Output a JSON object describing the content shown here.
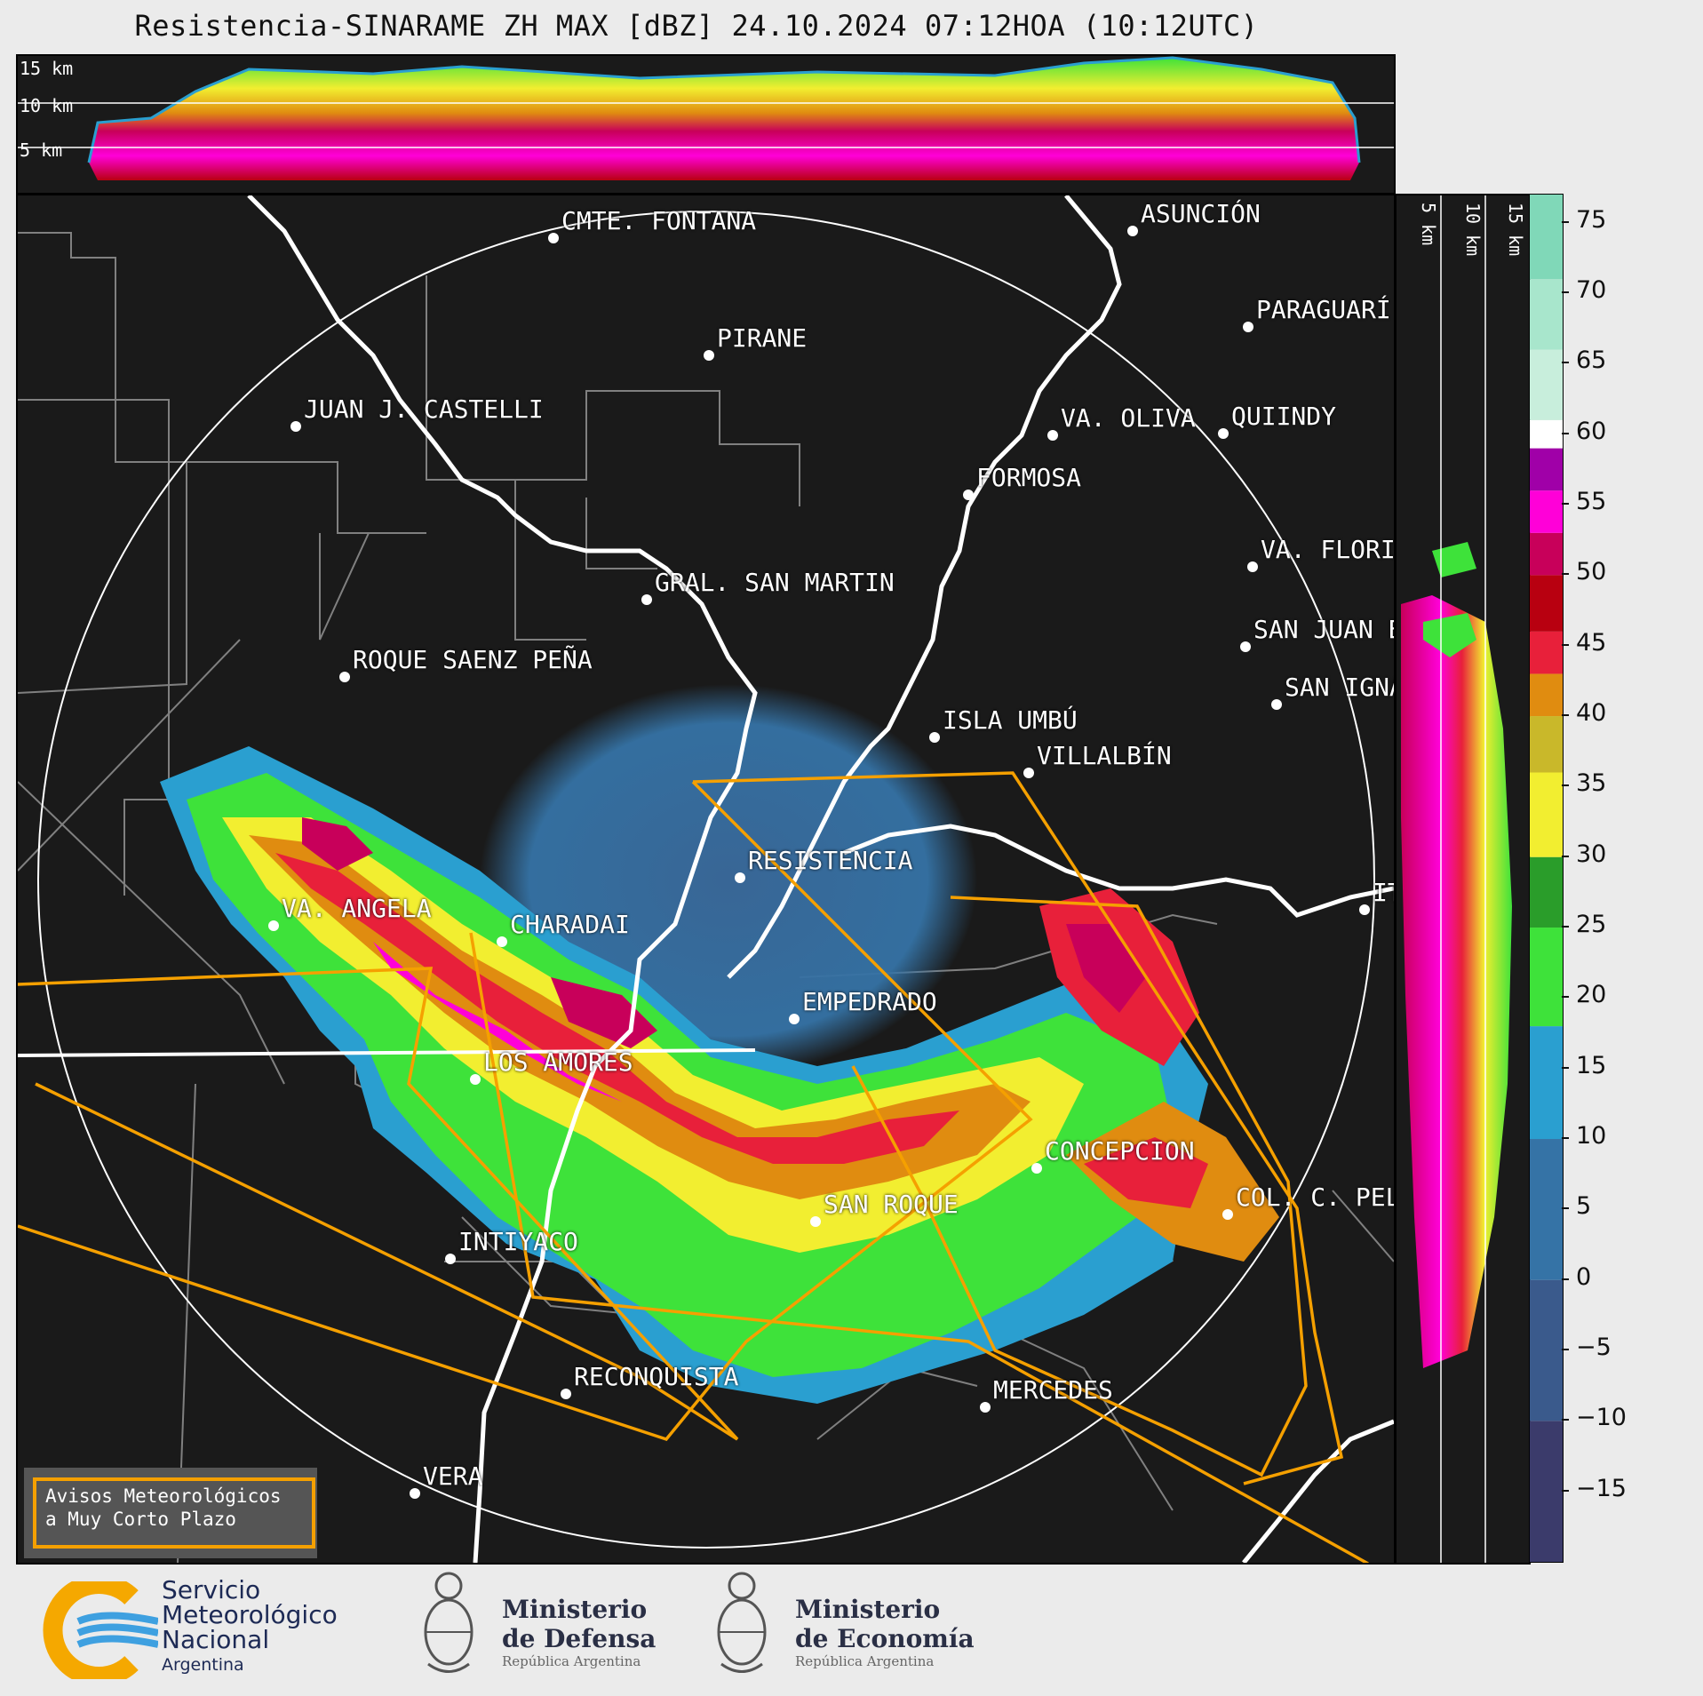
{
  "title": "Resistencia-SINARAME ZH MAX [dBZ] 24.10.2024 07:12HOA (10:12UTC)",
  "top_panel": {
    "height_labels": [
      "15 km",
      "10 km",
      "5 km"
    ]
  },
  "side_panel": {
    "height_labels": [
      "5 km",
      "10 km",
      "15 km"
    ]
  },
  "cities": [
    {
      "name": "CMTE. FONTANA"
    },
    {
      "name": "ASUNCIÓN"
    },
    {
      "name": "PIRANE"
    },
    {
      "name": "PARAGUARÍ"
    },
    {
      "name": "JUAN J. CASTELLI"
    },
    {
      "name": "QUIINDY"
    },
    {
      "name": "VA. OLIVA"
    },
    {
      "name": "FORMOSA"
    },
    {
      "name": "VA. FLORI"
    },
    {
      "name": "GRAL. SAN MARTIN"
    },
    {
      "name": "SAN JUAN B"
    },
    {
      "name": "ROQUE SAENZ PEÑA"
    },
    {
      "name": "SAN IGNA"
    },
    {
      "name": "ISLA UMBÚ"
    },
    {
      "name": "VILLALBÍN"
    },
    {
      "name": "RESISTENCIA"
    },
    {
      "name": "VA. ANGELA"
    },
    {
      "name": "CHARADAI"
    },
    {
      "name": "IT"
    },
    {
      "name": "EMPEDRADO"
    },
    {
      "name": "LOS AMORES"
    },
    {
      "name": "CONCEPCION"
    },
    {
      "name": "SAN ROQUE"
    },
    {
      "name": "COL. C. PEL"
    },
    {
      "name": "INTIYACO"
    },
    {
      "name": "RECONQUISTA"
    },
    {
      "name": "MERCEDES"
    },
    {
      "name": "VERA"
    }
  ],
  "colorbar": {
    "unit": "dBZ",
    "ticks": [
      "75",
      "70",
      "65",
      "60",
      "55",
      "50",
      "45",
      "40",
      "35",
      "30",
      "25",
      "20",
      "15",
      "10",
      "5",
      "0",
      "−5",
      "−10",
      "−15"
    ],
    "range": [
      -20,
      77
    ],
    "stops": [
      {
        "from": -20,
        "color": "#3b3b6b"
      },
      {
        "from": -10,
        "color": "#3a5a8c"
      },
      {
        "from": 0,
        "color": "#3573a6"
      },
      {
        "from": 10,
        "color": "#2a9fd0"
      },
      {
        "from": 18,
        "color": "#3ee23a"
      },
      {
        "from": 25,
        "color": "#2a9d2a"
      },
      {
        "from": 30,
        "color": "#f2ee30"
      },
      {
        "from": 36,
        "color": "#c9b82a"
      },
      {
        "from": 40,
        "color": "#e08c10"
      },
      {
        "from": 43,
        "color": "#e8203a"
      },
      {
        "from": 46,
        "color": "#b80010"
      },
      {
        "from": 50,
        "color": "#c8005a"
      },
      {
        "from": 53,
        "color": "#ff00d8"
      },
      {
        "from": 56,
        "color": "#a000a8"
      },
      {
        "from": 59,
        "color": "#ffffff"
      },
      {
        "from": 61,
        "color": "#c8eedc"
      },
      {
        "from": 66,
        "color": "#a8e6cc"
      },
      {
        "from": 71,
        "color": "#80d8b8"
      }
    ]
  },
  "warning_box": {
    "line1": "Avisos Meteorológicos",
    "line2": "a Muy Corto Plazo"
  },
  "logos": {
    "smn": {
      "line1": "Servicio",
      "line2": "Meteorológico",
      "line3": "Nacional",
      "line4": "Argentina"
    },
    "defensa": {
      "line1": "Ministerio",
      "line2": "de Defensa",
      "line3": "República Argentina"
    },
    "economia": {
      "line1": "Ministerio",
      "line2": "de Economía",
      "line3": "República Argentina"
    }
  },
  "colors": {
    "background": "#1a1a1a",
    "warning_polygon": "#f5a000",
    "rivers": "#ffffff",
    "borders": "#808080"
  }
}
